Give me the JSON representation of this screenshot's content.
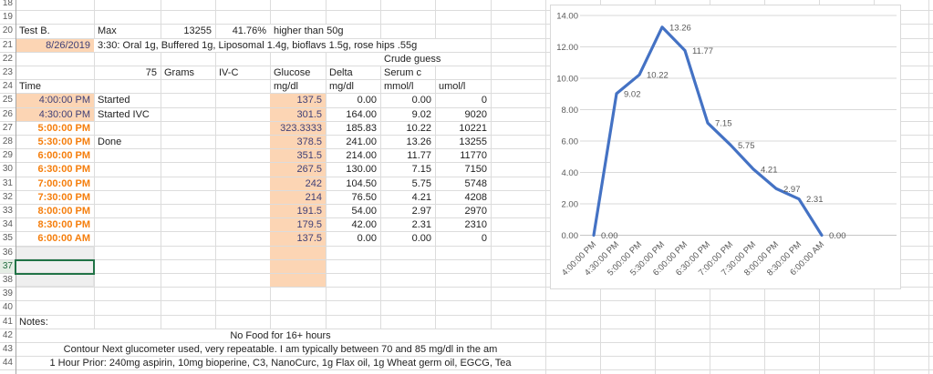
{
  "sheet": {
    "row_numbers": [
      "18",
      "19",
      "20",
      "21",
      "22",
      "23",
      "24",
      "25",
      "26",
      "27",
      "28",
      "29",
      "30",
      "31",
      "32",
      "33",
      "34",
      "35",
      "36",
      "37",
      "38",
      "39",
      "40",
      "41",
      "42",
      "43",
      "44"
    ],
    "active_row": "37",
    "meta": {
      "title": "Test B.",
      "max_label": "Max",
      "max_value": "13255",
      "max_pct": "41.76%",
      "max_note": "higher than 50g",
      "date": "8/26/2019",
      "protocol": "3:30: Oral 1g, Buffered 1g, Liposomal 1.4g, bioflavs 1.5g, rose hips .55g"
    },
    "headers": {
      "grams_value": "75",
      "grams_label": "Grams",
      "ivc_label": "IV-C",
      "crude_guess": "Crude guess",
      "time": "Time",
      "glucose": "Glucose",
      "glucose_unit": "mg/dl",
      "delta": "Delta",
      "delta_unit": "mg/dl",
      "serum": "Serum c",
      "serum_unit": "mmol/l",
      "umol_unit": "umol/l"
    },
    "rows": [
      {
        "time": "4:00:00 PM",
        "note": "Started",
        "glucose": "137.5",
        "delta": "0.00",
        "serum": "0.00",
        "umol": "0",
        "style": "input"
      },
      {
        "time": "4:30:00 PM",
        "note": "Started IVC",
        "glucose": "301.5",
        "delta": "164.00",
        "serum": "9.02",
        "umol": "9020",
        "style": "input"
      },
      {
        "time": "5:00:00 PM",
        "note": "",
        "glucose": "323.3333",
        "delta": "185.83",
        "serum": "10.22",
        "umol": "10221",
        "style": "orange"
      },
      {
        "time": "5:30:00 PM",
        "note": "Done",
        "glucose": "378.5",
        "delta": "241.00",
        "serum": "13.26",
        "umol": "13255",
        "style": "orange"
      },
      {
        "time": "6:00:00 PM",
        "note": "",
        "glucose": "351.5",
        "delta": "214.00",
        "serum": "11.77",
        "umol": "11770",
        "style": "orange"
      },
      {
        "time": "6:30:00 PM",
        "note": "",
        "glucose": "267.5",
        "delta": "130.00",
        "serum": "7.15",
        "umol": "7150",
        "style": "orange"
      },
      {
        "time": "7:00:00 PM",
        "note": "",
        "glucose": "242",
        "delta": "104.50",
        "serum": "5.75",
        "umol": "5748",
        "style": "orange"
      },
      {
        "time": "7:30:00 PM",
        "note": "",
        "glucose": "214",
        "delta": "76.50",
        "serum": "4.21",
        "umol": "4208",
        "style": "orange"
      },
      {
        "time": "8:00:00 PM",
        "note": "",
        "glucose": "191.5",
        "delta": "54.00",
        "serum": "2.97",
        "umol": "2970",
        "style": "orange"
      },
      {
        "time": "8:30:00 PM",
        "note": "",
        "glucose": "179.5",
        "delta": "42.00",
        "serum": "2.31",
        "umol": "2310",
        "style": "orange"
      },
      {
        "time": "6:00:00 AM",
        "note": "",
        "glucose": "137.5",
        "delta": "0.00",
        "serum": "0.00",
        "umol": "0",
        "style": "orange"
      }
    ],
    "notes": {
      "label": "Notes:",
      "line1": "No Food for 16+ hours",
      "line2": "Contour Next glucometer used, very repeatable. I am typically between 70 and 85 mg/dl in the am",
      "line3": "1 Hour Prior: 240mg aspirin, 10mg bioperine, C3, NanoCurc, 1g Flax oil, 1g Wheat germ oil, EGCG, Tea"
    }
  },
  "chart_data": {
    "type": "line",
    "title": "",
    "x": [
      "4:00:00 PM",
      "4:30:00 PM",
      "5:00:00 PM",
      "5:30:00 PM",
      "6:00:00 PM",
      "6:30:00 PM",
      "7:00:00 PM",
      "7:30:00 PM",
      "8:00:00 PM",
      "8:30:00 PM",
      "6:00:00 AM"
    ],
    "series": [
      {
        "name": "Serum c mmol/l",
        "values": [
          0,
          9.02,
          10.22,
          13.26,
          11.77,
          7.15,
          5.75,
          4.21,
          2.97,
          2.31,
          0
        ]
      }
    ],
    "data_labels": [
      "0.00",
      "9.02",
      "10.22",
      "13.26",
      "11.77",
      "7.15",
      "5.75",
      "4.21",
      "2.97",
      "2.31",
      "0.00"
    ],
    "ylim": [
      0,
      14
    ],
    "ytick_step": 2,
    "ytick_labels": [
      "0.00",
      "2.00",
      "4.00",
      "6.00",
      "8.00",
      "10.00",
      "12.00",
      "14.00"
    ],
    "grid": true,
    "legend": "none",
    "line_color": "#4472C4"
  },
  "colors": {
    "input_fill": "#FCD5B4",
    "input_text": "#3F3F76",
    "orange_text": "#F57E0C",
    "gridline": "#DCDCDC",
    "chart_line": "#4472C4",
    "active_border": "#217346"
  }
}
